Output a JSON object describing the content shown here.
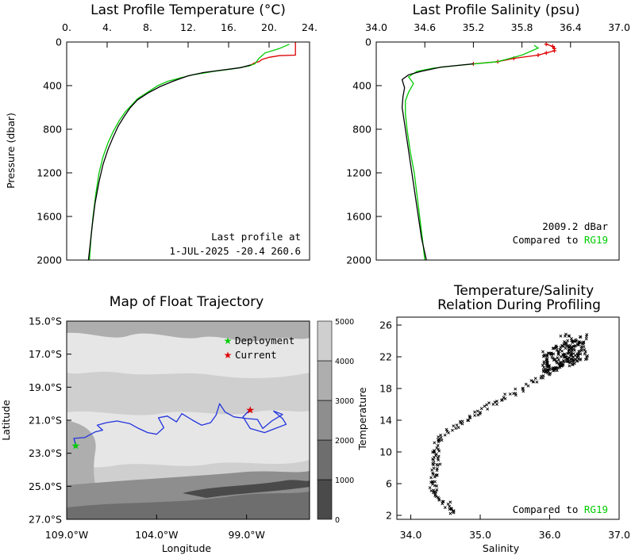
{
  "chart_data": [
    {
      "id": "temperature",
      "type": "line",
      "title": "Last Profile Temperature (°C)",
      "xlabel": "",
      "ylabel": "Pressure (dbar)",
      "xlim": [
        0,
        24
      ],
      "ylim": [
        2000,
        0
      ],
      "xticks": [
        0,
        4,
        8,
        12,
        16,
        20,
        24
      ],
      "xtick_labels": [
        "0.",
        "4.",
        "8.",
        "12.",
        "16.",
        "20.",
        "24."
      ],
      "yticks": [
        0,
        400,
        800,
        1200,
        1600,
        2000
      ],
      "x_axis_position": "top",
      "annotation": [
        "Last profile at",
        "1-JUL-2025   -20.4 260.6"
      ],
      "series": [
        {
          "color": "#dd0000",
          "points": [
            [
              22.6,
              0
            ],
            [
              22.6,
              20
            ],
            [
              22.6,
              80
            ],
            [
              22.6,
              120
            ],
            [
              21.0,
              125
            ],
            [
              20.0,
              140
            ],
            [
              19.3,
              160
            ],
            [
              19.0,
              180
            ],
            [
              18.6,
              190
            ],
            [
              18.2,
              210
            ]
          ]
        },
        {
          "color": "#00cc00",
          "points": [
            [
              22.0,
              20
            ],
            [
              21.0,
              60
            ],
            [
              19.6,
              100
            ],
            [
              19.0,
              150
            ],
            [
              18.6,
              200
            ],
            [
              18.0,
              220
            ],
            [
              16.5,
              245
            ],
            [
              14.5,
              270
            ],
            [
              12.5,
              300
            ],
            [
              11.2,
              330
            ],
            [
              10.0,
              360
            ],
            [
              9.0,
              400
            ],
            [
              8.0,
              460
            ],
            [
              7.0,
              520
            ],
            [
              6.4,
              580
            ],
            [
              5.8,
              640
            ],
            [
              5.2,
              720
            ],
            [
              4.6,
              820
            ],
            [
              4.1,
              920
            ],
            [
              3.6,
              1050
            ],
            [
              3.2,
              1200
            ],
            [
              2.9,
              1380
            ],
            [
              2.6,
              1600
            ],
            [
              2.4,
              1800
            ],
            [
              2.25,
              2000
            ]
          ]
        },
        {
          "color": "#000000",
          "points": [
            [
              18.2,
              210
            ],
            [
              17.2,
              235
            ],
            [
              15.5,
              255
            ],
            [
              13.5,
              280
            ],
            [
              12.0,
              310
            ],
            [
              10.5,
              360
            ],
            [
              9.2,
              410
            ],
            [
              8.0,
              470
            ],
            [
              7.0,
              530
            ],
            [
              6.3,
              600
            ],
            [
              5.7,
              680
            ],
            [
              5.1,
              770
            ],
            [
              4.6,
              870
            ],
            [
              4.1,
              980
            ],
            [
              3.6,
              1120
            ],
            [
              3.2,
              1280
            ],
            [
              2.8,
              1480
            ],
            [
              2.5,
              1700
            ],
            [
              2.3,
              1880
            ],
            [
              2.15,
              2000
            ]
          ]
        }
      ]
    },
    {
      "id": "salinity",
      "type": "line",
      "title": "Last Profile Salinity (psu)",
      "xlabel": "",
      "ylabel": "",
      "xlim": [
        34.0,
        37.0
      ],
      "ylim": [
        2000,
        0
      ],
      "xticks": [
        34.0,
        34.6,
        35.2,
        35.8,
        36.4,
        37.0
      ],
      "xtick_labels": [
        "34.0",
        "34.6",
        "35.2",
        "35.8",
        "36.4",
        "37.0"
      ],
      "yticks": [
        0,
        400,
        800,
        1200,
        1600,
        2000
      ],
      "x_axis_position": "top",
      "annotation_lines": [
        "2009.2  dBar",
        "Compared to "
      ],
      "annotation_highlight": "RG19",
      "highlight_color": "#00cc00",
      "series": [
        {
          "color": "#dd0000",
          "markers": true,
          "points": [
            [
              36.1,
              20
            ],
            [
              36.18,
              40
            ],
            [
              36.2,
              60
            ],
            [
              36.2,
              80
            ],
            [
              36.1,
              100
            ],
            [
              36.0,
              120
            ],
            [
              35.7,
              150
            ],
            [
              35.5,
              180
            ],
            [
              35.2,
              200
            ]
          ]
        },
        {
          "color": "#00cc00",
          "points": [
            [
              35.95,
              30
            ],
            [
              36.0,
              55
            ],
            [
              35.8,
              120
            ],
            [
              35.5,
              180
            ],
            [
              35.0,
              215
            ],
            [
              34.7,
              240
            ],
            [
              34.5,
              270
            ],
            [
              34.4,
              320
            ],
            [
              34.46,
              380
            ],
            [
              34.4,
              460
            ],
            [
              34.36,
              540
            ],
            [
              34.36,
              650
            ],
            [
              34.38,
              800
            ],
            [
              34.42,
              1000
            ],
            [
              34.47,
              1200
            ],
            [
              34.52,
              1500
            ],
            [
              34.57,
              1800
            ],
            [
              34.6,
              2000
            ]
          ]
        },
        {
          "color": "#000000",
          "points": [
            [
              35.2,
              200
            ],
            [
              34.8,
              230
            ],
            [
              34.55,
              270
            ],
            [
              34.4,
              300
            ],
            [
              34.32,
              345
            ],
            [
              34.35,
              420
            ],
            [
              34.33,
              500
            ],
            [
              34.32,
              600
            ],
            [
              34.34,
              700
            ],
            [
              34.38,
              900
            ],
            [
              34.44,
              1200
            ],
            [
              34.5,
              1500
            ],
            [
              34.56,
              1800
            ],
            [
              34.62,
              2000
            ]
          ]
        }
      ]
    },
    {
      "id": "trajectory",
      "type": "heatmap",
      "title": "Map of Float Trajectory",
      "xlabel": "Longitude",
      "ylabel": "Latitude",
      "xlim": [
        -109.0,
        -95.5
      ],
      "ylim": [
        -27.0,
        -15.0
      ],
      "xticks": [
        -109.0,
        -104.0,
        -99.0
      ],
      "xtick_labels": [
        "109.0°W",
        "104.0°W",
        "99.0°W"
      ],
      "yticks": [
        -15.0,
        -17.0,
        -19.0,
        -21.0,
        -23.0,
        -25.0,
        -27.0
      ],
      "ytick_labels": [
        "15.0°S",
        "17.0°S",
        "19.0°S",
        "21.0°S",
        "23.0°S",
        "25.0°S",
        "27.0°S"
      ],
      "colorbar": {
        "levels": [
          0,
          1000,
          2000,
          3000,
          4000,
          5000
        ],
        "level_labels": [
          "0",
          "1000",
          "2000",
          "3000",
          "4000",
          "5000"
        ],
        "colors": [
          "#4a4a4a",
          "#6e6e6e",
          "#8e8e8e",
          "#aeaeae",
          "#cfcfcf",
          "#e6e6e6"
        ]
      },
      "legend": [
        {
          "label": "Deployment",
          "color": "#00cc00"
        },
        {
          "label": "Current",
          "color": "#dd0000"
        }
      ],
      "deployment": [
        -108.5,
        -22.5
      ],
      "current": [
        -98.8,
        -20.35
      ],
      "track_color": "#2233dd",
      "track": [
        [
          -108.5,
          -22.5
        ],
        [
          -108.6,
          -22.1
        ],
        [
          -108.0,
          -22.05
        ],
        [
          -107.4,
          -21.7
        ],
        [
          -107.0,
          -21.6
        ],
        [
          -107.3,
          -21.3
        ],
        [
          -106.8,
          -21.15
        ],
        [
          -106.2,
          -21.05
        ],
        [
          -105.5,
          -21.2
        ],
        [
          -105.0,
          -21.5
        ],
        [
          -104.5,
          -21.75
        ],
        [
          -104.0,
          -21.85
        ],
        [
          -103.6,
          -21.45
        ],
        [
          -103.9,
          -20.85
        ],
        [
          -103.4,
          -20.75
        ],
        [
          -102.9,
          -21.1
        ],
        [
          -102.6,
          -20.6
        ],
        [
          -102.0,
          -21.0
        ],
        [
          -101.5,
          -21.3
        ],
        [
          -101.0,
          -21.15
        ],
        [
          -100.7,
          -20.7
        ],
        [
          -100.5,
          -20.0
        ],
        [
          -100.2,
          -20.5
        ],
        [
          -99.7,
          -20.8
        ],
        [
          -99.0,
          -20.9
        ],
        [
          -98.4,
          -20.95
        ],
        [
          -98.1,
          -21.5
        ],
        [
          -97.6,
          -21.05
        ],
        [
          -97.0,
          -20.65
        ],
        [
          -97.5,
          -20.45
        ],
        [
          -97.0,
          -20.9
        ],
        [
          -96.8,
          -21.25
        ],
        [
          -97.4,
          -21.5
        ],
        [
          -98.0,
          -21.75
        ],
        [
          -98.8,
          -21.5
        ],
        [
          -99.2,
          -20.8
        ],
        [
          -98.8,
          -20.35
        ]
      ]
    },
    {
      "id": "ts",
      "type": "scatter",
      "title": "Temperature/Salinity",
      "subtitle": "Relation During Profiling",
      "xlabel": "Salinity",
      "ylabel": "Temperature",
      "xlim": [
        33.8,
        37.0
      ],
      "ylim": [
        1.5,
        27.0
      ],
      "xticks": [
        34.0,
        35.0,
        36.0,
        37.0
      ],
      "xtick_labels": [
        "34.0",
        "35.0",
        "36.0",
        "37.0"
      ],
      "yticks": [
        2,
        6,
        10,
        14,
        18,
        22,
        26
      ],
      "annotation": "Compared to ",
      "annotation_highlight": "RG19",
      "highlight_color": "#00cc00",
      "points_color": "#000000",
      "curve": [
        [
          34.62,
          2.3
        ],
        [
          34.6,
          2.8
        ],
        [
          34.5,
          3.5
        ],
        [
          34.4,
          4.2
        ],
        [
          34.35,
          5.0
        ],
        [
          34.32,
          5.8
        ],
        [
          34.32,
          6.6
        ],
        [
          34.35,
          7.4
        ],
        [
          34.38,
          8.2
        ],
        [
          34.37,
          9.0
        ],
        [
          34.36,
          9.8
        ],
        [
          34.38,
          10.6
        ],
        [
          34.42,
          11.4
        ],
        [
          34.5,
          12.2
        ],
        [
          34.62,
          13.0
        ],
        [
          34.75,
          13.8
        ],
        [
          34.9,
          14.6
        ],
        [
          35.05,
          15.4
        ],
        [
          35.2,
          16.2
        ],
        [
          35.38,
          17.0
        ],
        [
          35.55,
          17.8
        ],
        [
          35.72,
          18.6
        ],
        [
          35.9,
          19.4
        ],
        [
          36.05,
          20.2
        ],
        [
          36.18,
          21.0
        ],
        [
          36.28,
          21.8
        ],
        [
          36.32,
          22.6
        ],
        [
          36.3,
          23.4
        ],
        [
          36.25,
          24.2
        ],
        [
          36.2,
          25.0
        ]
      ],
      "cluster": {
        "salinity": [
          35.9,
          36.55
        ],
        "temperature": [
          19.5,
          24.8
        ],
        "count": 180
      },
      "spread": 0.12
    }
  ]
}
